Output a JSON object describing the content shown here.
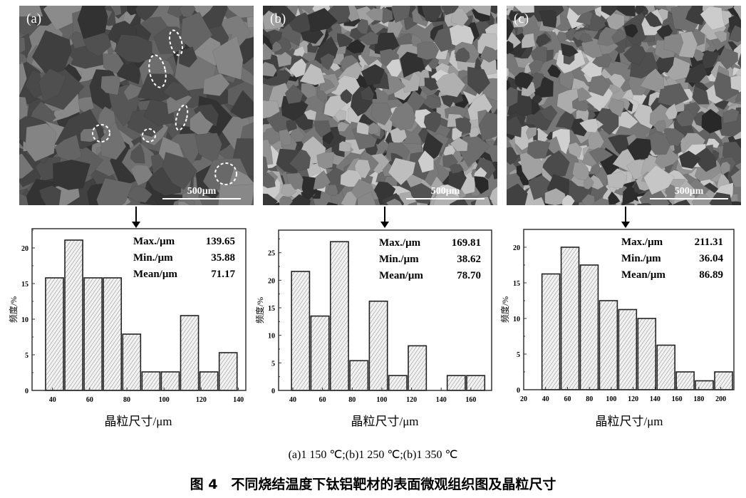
{
  "panels": [
    {
      "label": "(a)",
      "scale_bar": "500μm"
    },
    {
      "label": "(b)",
      "scale_bar": "500μm"
    },
    {
      "label": "(c)",
      "scale_bar": "500μm"
    }
  ],
  "chart_data": [
    {
      "type": "bar",
      "panel": "(a)",
      "xlabel": "晶粒尺寸/μm",
      "ylabel": "频度/%",
      "xlim": [
        29,
        144
      ],
      "ylim": [
        0,
        22.7
      ],
      "xticks": [
        40,
        60,
        80,
        100,
        120,
        140
      ],
      "yticks": [
        0,
        5,
        10,
        15,
        20
      ],
      "bin_start": 35.88,
      "bin_width": 10.38,
      "values": [
        15.8,
        21.1,
        15.8,
        15.8,
        7.9,
        2.6,
        2.6,
        10.5,
        2.6,
        5.3
      ],
      "stats": [
        [
          "Max./μm",
          "139.65"
        ],
        [
          "Min./μm",
          "35.88"
        ],
        [
          "Mean/μm",
          "71.17"
        ]
      ],
      "grid": false
    },
    {
      "type": "bar",
      "panel": "(b)",
      "xlabel": "晶粒尺寸/μm",
      "ylabel": "频度/%",
      "xlim": [
        30.4,
        174
      ],
      "ylim": [
        0,
        29.1
      ],
      "xticks": [
        40,
        60,
        80,
        100,
        120,
        140,
        160
      ],
      "yticks": [
        0,
        5,
        10,
        15,
        20,
        25
      ],
      "bin_start": 38.62,
      "bin_width": 13.12,
      "values": [
        21.6,
        13.5,
        27.0,
        5.4,
        16.2,
        2.7,
        8.1,
        0,
        2.7,
        2.7
      ],
      "stats": [
        [
          "Max./μm",
          "169.81"
        ],
        [
          "Min./μm",
          "38.62"
        ],
        [
          "Mean/μm",
          "78.70"
        ]
      ],
      "grid": false
    },
    {
      "type": "bar",
      "panel": "(c)",
      "xlabel": "晶粒尺寸/μm",
      "ylabel": "频度/%",
      "xlim": [
        20,
        212
      ],
      "ylim": [
        0,
        22.5
      ],
      "xticks": [
        20,
        40,
        60,
        80,
        100,
        120,
        140,
        160,
        180,
        200
      ],
      "yticks": [
        0,
        5,
        10,
        15,
        20
      ],
      "bin_start": 36.04,
      "bin_width": 17.53,
      "values": [
        16.25,
        20.0,
        17.5,
        12.5,
        11.25,
        10.0,
        6.25,
        2.5,
        1.25,
        2.5
      ],
      "stats": [
        [
          "Max./μm",
          "211.31"
        ],
        [
          "Min./μm",
          "36.04"
        ],
        [
          "Mean/μm",
          "86.89"
        ]
      ],
      "grid": false
    }
  ],
  "caption": {
    "subcaption": "(a)1 150 ℃;(b)1 250 ℃;(b)1 350 ℃",
    "title": "图 4　不同烧结温度下钛铝靶材的表面微观组织图及晶粒尺寸"
  }
}
